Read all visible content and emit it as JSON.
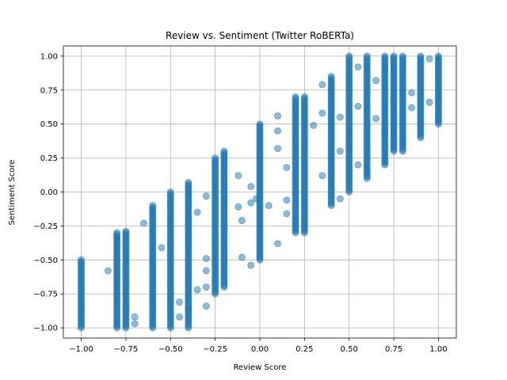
{
  "chart_data": {
    "type": "scatter",
    "title": "Review vs. Sentiment (Twitter RoBERTa)",
    "xlabel": "Review Score",
    "ylabel": "Sentiment Score",
    "xlim": [
      -1.1,
      1.1
    ],
    "ylim": [
      -1.075,
      1.075
    ],
    "xticks": [
      -1.0,
      -0.75,
      -0.5,
      -0.25,
      0.0,
      0.25,
      0.5,
      0.75,
      1.0
    ],
    "xtick_labels": [
      "−1.00",
      "−0.75",
      "−0.50",
      "−0.25",
      "0.00",
      "0.25",
      "0.50",
      "0.75",
      "1.00"
    ],
    "yticks": [
      -1.0,
      -0.75,
      -0.5,
      -0.25,
      0.0,
      0.25,
      0.5,
      0.75,
      1.0
    ],
    "ytick_labels": [
      "−1.00",
      "−0.75",
      "−0.50",
      "−0.25",
      "0.00",
      "0.25",
      "0.50",
      "0.75",
      "1.00"
    ],
    "grid": true,
    "marker_color": "#1f77b4",
    "marker_alpha": 0.5,
    "columns": [
      {
        "x": -1.0,
        "y_min": -1.0,
        "y_max": -0.5
      },
      {
        "x": -0.8,
        "y_min": -1.0,
        "y_max": -0.3
      },
      {
        "x": -0.75,
        "y_min": -1.0,
        "y_max": -0.3
      },
      {
        "x": -0.6,
        "y_min": -1.0,
        "y_max": -0.1
      },
      {
        "x": -0.5,
        "y_min": -1.0,
        "y_max": 0.0
      },
      {
        "x": -0.4,
        "y_min": -1.0,
        "y_max": 0.07
      },
      {
        "x": -0.25,
        "y_min": -0.75,
        "y_max": 0.25
      },
      {
        "x": -0.2,
        "y_min": -0.7,
        "y_max": 0.3
      },
      {
        "x": 0.0,
        "y_min": -0.5,
        "y_max": 0.5
      },
      {
        "x": 0.2,
        "y_min": -0.3,
        "y_max": 0.7
      },
      {
        "x": 0.25,
        "y_min": -0.3,
        "y_max": 0.7
      },
      {
        "x": 0.4,
        "y_min": -0.1,
        "y_max": 0.85
      },
      {
        "x": 0.5,
        "y_min": 0.0,
        "y_max": 1.0
      },
      {
        "x": 0.6,
        "y_min": 0.1,
        "y_max": 1.0
      },
      {
        "x": 0.7,
        "y_min": 0.2,
        "y_max": 1.0
      },
      {
        "x": 0.75,
        "y_min": 0.3,
        "y_max": 1.0
      },
      {
        "x": 0.8,
        "y_min": 0.3,
        "y_max": 1.0
      },
      {
        "x": 0.9,
        "y_min": 0.4,
        "y_max": 1.0
      },
      {
        "x": 1.0,
        "y_min": 0.5,
        "y_max": 1.0
      }
    ],
    "points": [
      [
        -0.85,
        -0.58
      ],
      [
        -0.8,
        -0.33
      ],
      [
        -0.75,
        -0.29
      ],
      [
        -0.7,
        -0.92
      ],
      [
        -0.7,
        -0.97
      ],
      [
        -0.65,
        -0.23
      ],
      [
        -0.55,
        -0.41
      ],
      [
        -0.45,
        -0.81
      ],
      [
        -0.45,
        -0.92
      ],
      [
        -0.4,
        -0.86
      ],
      [
        -0.35,
        -0.72
      ],
      [
        -0.3,
        -0.7
      ],
      [
        -0.3,
        -0.84
      ],
      [
        -0.3,
        -0.49
      ],
      [
        -0.35,
        -0.15
      ],
      [
        -0.3,
        -0.58
      ],
      [
        -0.3,
        -0.03
      ],
      [
        -0.1,
        -0.21
      ],
      [
        -0.1,
        -0.48
      ],
      [
        -0.12,
        0.12
      ],
      [
        -0.12,
        -0.11
      ],
      [
        -0.05,
        -0.54
      ],
      [
        -0.05,
        -0.08
      ],
      [
        -0.05,
        0.04
      ],
      [
        -0.02,
        -0.05
      ],
      [
        0.05,
        -0.1
      ],
      [
        0.1,
        -0.38
      ],
      [
        0.1,
        0.45
      ],
      [
        0.1,
        0.32
      ],
      [
        0.1,
        0.56
      ],
      [
        0.15,
        -0.16
      ],
      [
        0.15,
        -0.06
      ],
      [
        0.15,
        0.18
      ],
      [
        0.35,
        0.12
      ],
      [
        0.35,
        0.79
      ],
      [
        0.35,
        0.58
      ],
      [
        0.45,
        -0.05
      ],
      [
        0.45,
        0.55
      ],
      [
        0.45,
        0.3
      ],
      [
        0.55,
        0.63
      ],
      [
        0.55,
        0.2
      ],
      [
        0.65,
        0.54
      ],
      [
        0.65,
        0.82
      ],
      [
        0.7,
        0.45
      ],
      [
        0.85,
        0.73
      ],
      [
        0.85,
        0.62
      ],
      [
        0.95,
        0.98
      ],
      [
        0.95,
        0.66
      ],
      [
        0.55,
        0.92
      ],
      [
        0.3,
        0.49
      ]
    ]
  }
}
